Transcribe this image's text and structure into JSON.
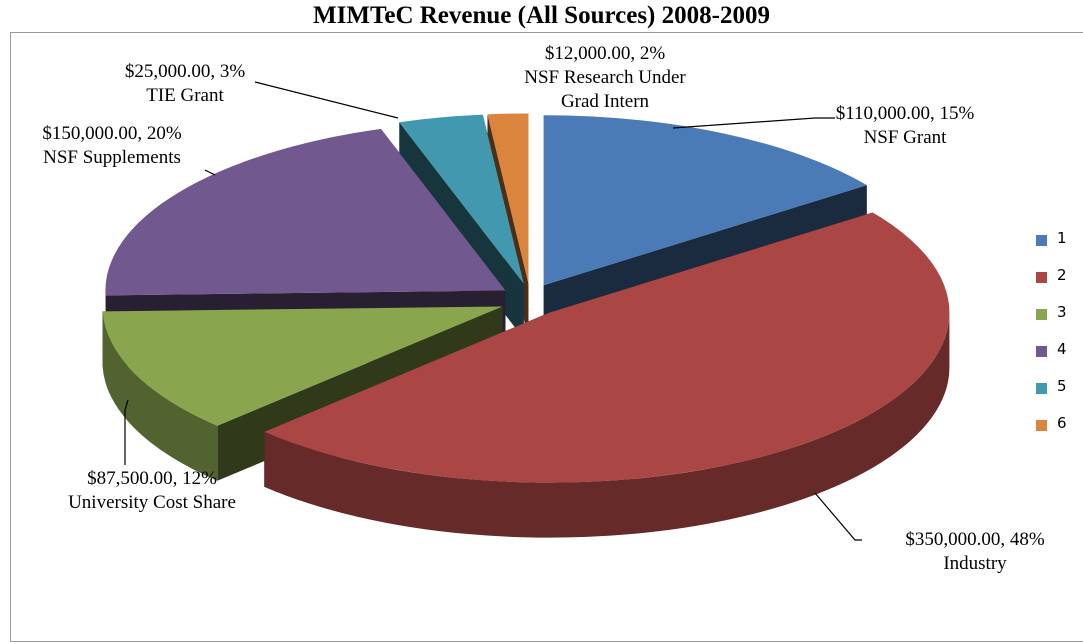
{
  "chart_data": {
    "type": "pie",
    "title": "MIMTeC Revenue (All Sources) 2008-2009",
    "categories": [
      "NSF Grant",
      "Industry",
      "University Cost Share",
      "NSF Supplements",
      "TIE Grant",
      "NSF Research Under Grad Intern"
    ],
    "values": [
      110000,
      350000,
      87500,
      150000,
      25000,
      12000
    ],
    "value_labels": [
      "$110,000.00, 15%",
      "$350,000.00, 48%",
      "$87,500.00, 12%",
      "$150,000.00, 20%",
      "$25,000.00, 3%",
      "$12,000.00, 2%"
    ],
    "legend": [
      "1",
      "2",
      "3",
      "4",
      "5",
      "6"
    ],
    "legend_position": "right",
    "colors": [
      "#4a7bb7",
      "#aa4643",
      "#89a54e",
      "#71588f",
      "#4198af",
      "#db843d"
    ]
  }
}
